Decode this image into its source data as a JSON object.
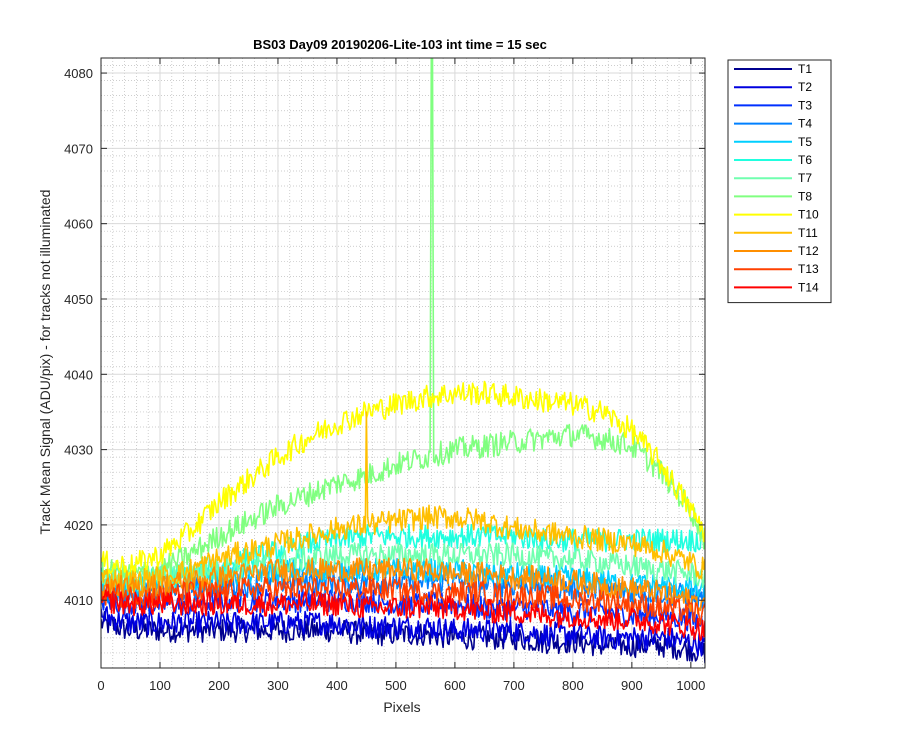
{
  "chart_data": {
    "type": "line",
    "title": "BS03 Day09 20190206-Lite-103 int time = 15 sec",
    "xlabel": "Pixels",
    "ylabel": "Track Mean Signal (ADU/pix) - for tracks not illuminated",
    "xlim": [
      0,
      1024
    ],
    "ylim": [
      4001,
      4082
    ],
    "xticks": [
      0,
      100,
      200,
      300,
      400,
      500,
      600,
      700,
      800,
      900,
      1000
    ],
    "yticks": [
      4010,
      4020,
      4030,
      4040,
      4050,
      4060,
      4070,
      4080
    ],
    "grid": true,
    "minor_grid": true,
    "legend_position": "outside-top-right",
    "x": [
      0,
      50,
      100,
      150,
      200,
      250,
      300,
      350,
      400,
      450,
      500,
      550,
      600,
      650,
      700,
      750,
      800,
      850,
      900,
      950,
      1000,
      1024
    ],
    "series": [
      {
        "name": "T1",
        "color": "#00008f",
        "values": [
          4007,
          4006,
          4006,
          4006,
          4006,
          4006,
          4006,
          4006,
          4006,
          4005.5,
          4005.5,
          4005.5,
          4005,
          4005,
          4005,
          4004.5,
          4004.5,
          4004,
          4004,
          4004,
          4003.5,
          4003
        ]
      },
      {
        "name": "T2",
        "color": "#0000df",
        "values": [
          4008,
          4007,
          4007,
          4007,
          4007,
          4007,
          4007,
          4007,
          4007,
          4006.5,
          4006.5,
          4006.5,
          4006,
          4006,
          4006,
          4005.5,
          4005.5,
          4005,
          4005,
          4005,
          4004.5,
          4004
        ]
      },
      {
        "name": "T3",
        "color": "#0030ff",
        "values": [
          4010,
          4009.5,
          4009.5,
          4009.5,
          4010,
          4010,
          4010,
          4010,
          4010,
          4010,
          4009.5,
          4009.5,
          4009.5,
          4009,
          4009,
          4009,
          4008.5,
          4008.5,
          4008,
          4008,
          4007.5,
          4007
        ]
      },
      {
        "name": "T4",
        "color": "#0080ff",
        "values": [
          4011,
          4010.5,
          4011,
          4011.5,
          4012,
          4012,
          4012.5,
          4012.5,
          4012.5,
          4012.5,
          4012.5,
          4012.5,
          4012.5,
          4012,
          4012,
          4012,
          4011.5,
          4011.5,
          4011,
          4011,
          4010.5,
          4010
        ]
      },
      {
        "name": "T5",
        "color": "#00cfff",
        "values": [
          4012,
          4011.5,
          4012,
          4012.5,
          4013,
          4013.5,
          4014,
          4014,
          4014,
          4014,
          4014,
          4014,
          4014,
          4013.5,
          4013.5,
          4013,
          4013,
          4012.5,
          4012,
          4012,
          4011.5,
          4011
        ]
      },
      {
        "name": "T6",
        "color": "#20ffdf",
        "values": [
          4013,
          4012.5,
          4013,
          4013.5,
          4014.5,
          4015.5,
          4016.5,
          4017.5,
          4018,
          4018.5,
          4018.5,
          4018.5,
          4018.5,
          4018.5,
          4018.5,
          4018,
          4018,
          4018,
          4018,
          4018,
          4018,
          4018
        ]
      },
      {
        "name": "T7",
        "color": "#70ffaf",
        "values": [
          4013,
          4012.5,
          4013,
          4013.5,
          4014,
          4014.5,
          4015,
          4015.5,
          4016,
          4016,
          4016,
          4016,
          4016,
          4016,
          4016,
          4015.5,
          4015.5,
          4015,
          4014.5,
          4014,
          4013.5,
          4013
        ]
      },
      {
        "name": "T8",
        "color": "#80ff80",
        "values": [
          4014,
          4013.5,
          4014,
          4016,
          4018.5,
          4020.5,
          4022.5,
          4024,
          4025.5,
          4026.5,
          4028,
          4029,
          4030,
          4030.5,
          4031,
          4031.5,
          4032,
          4031.5,
          4030.5,
          4027,
          4022,
          4018
        ]
      },
      {
        "name": "T10",
        "color": "#ffff00",
        "values": [
          4015,
          4014.5,
          4016,
          4019,
          4023,
          4026,
          4029,
          4031.5,
          4033.5,
          4035,
          4036,
          4037,
          4037.5,
          4037.5,
          4037,
          4036.5,
          4036,
          4035,
          4032.5,
          4028,
          4022,
          4019
        ]
      },
      {
        "name": "T11",
        "color": "#ffbf00",
        "values": [
          4013,
          4012.5,
          4013,
          4014,
          4015.5,
          4016.5,
          4017.5,
          4018.5,
          4019.5,
          4020,
          4020.5,
          4021,
          4021,
          4020.5,
          4019.5,
          4019,
          4018.5,
          4018,
          4017.5,
          4016.5,
          4015,
          4014
        ]
      },
      {
        "name": "T12",
        "color": "#ff8f00",
        "values": [
          4012,
          4011.5,
          4012,
          4012.5,
          4013,
          4013.5,
          4014,
          4014,
          4014,
          4014,
          4014,
          4014,
          4013.5,
          4013.5,
          4013,
          4013,
          4012.5,
          4012,
          4011.5,
          4011,
          4010,
          4009.5
        ]
      },
      {
        "name": "T13",
        "color": "#ff4000",
        "values": [
          4011,
          4010.5,
          4010.5,
          4011,
          4011,
          4011.5,
          4011.5,
          4011.5,
          4011.5,
          4011.5,
          4011.5,
          4011,
          4011,
          4011,
          4010.5,
          4010.5,
          4010,
          4010,
          4009.5,
          4009,
          4008.5,
          4008
        ]
      },
      {
        "name": "T14",
        "color": "#ff0000",
        "values": [
          4010,
          4009.5,
          4009.5,
          4009.5,
          4009.5,
          4009.5,
          4009.5,
          4009.5,
          4009.5,
          4009,
          4009,
          4009,
          4009,
          4008.5,
          4008.5,
          4008,
          4008,
          4007.5,
          4007.5,
          4007,
          4006.5,
          4006
        ]
      }
    ],
    "spikes": [
      {
        "series": "T8",
        "x": 561,
        "y": 4082
      },
      {
        "series": "T11",
        "x": 450,
        "y": 4035
      }
    ]
  }
}
